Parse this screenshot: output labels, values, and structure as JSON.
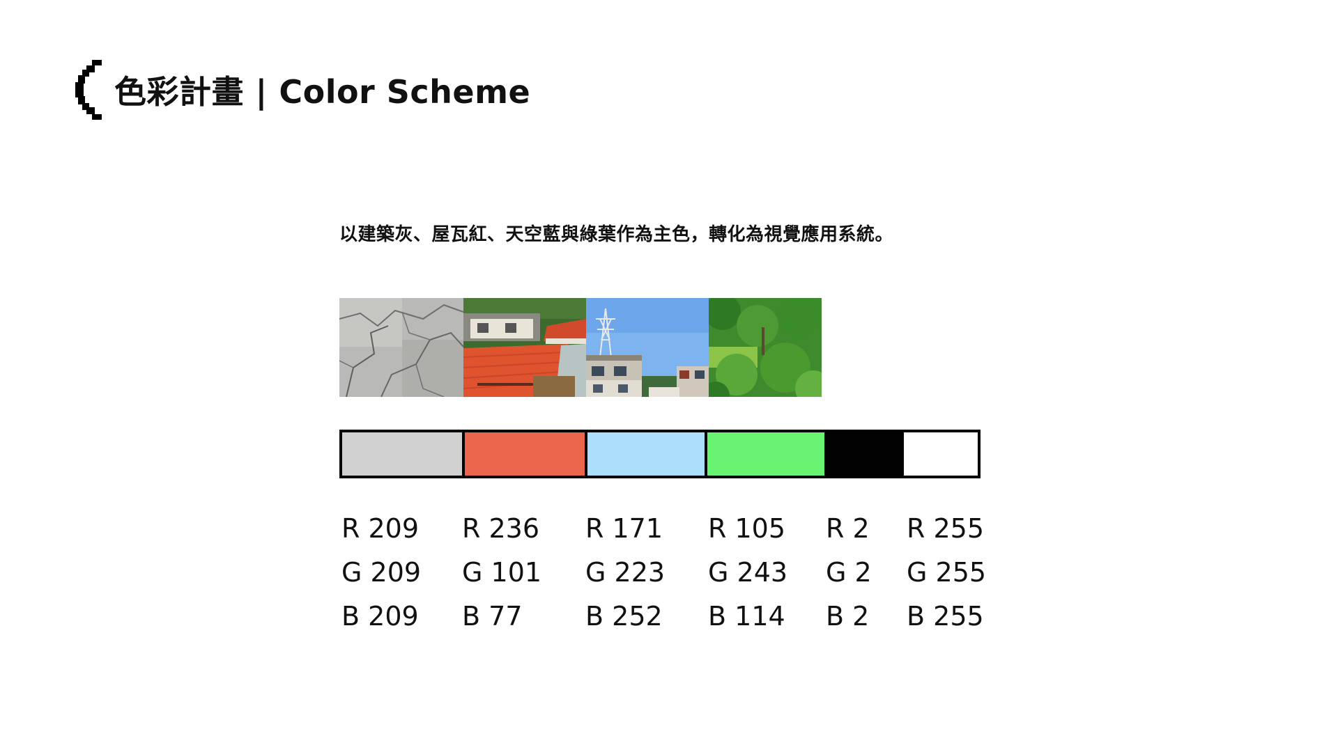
{
  "header": {
    "title": "色彩計畫 | Color Scheme"
  },
  "description": "以建築灰、屋瓦紅、天空藍與綠葉作為主色，轉化為視覺應用系統。",
  "colors": {
    "accent": "#020202",
    "background": "#ffffff"
  },
  "palette": [
    {
      "hex": "#d1d1d1",
      "r": "R 209",
      "g": "G 209",
      "b": "B 209"
    },
    {
      "hex": "#ec654d",
      "r": "R 236",
      "g": "G 101",
      "b": "B 77"
    },
    {
      "hex": "#abdffc",
      "r": "R 171",
      "g": "G 223",
      "b": "B 252"
    },
    {
      "hex": "#69f372",
      "r": "R 105",
      "g": "G 243",
      "b": "B 114"
    },
    {
      "hex": "#020202",
      "r": "R 2",
      "g": "G 2",
      "b": "B 2"
    },
    {
      "hex": "#ffffff",
      "r": "R 255",
      "g": "G 255",
      "b": "B 255"
    }
  ],
  "photos": [
    {
      "icon": "concrete-wall-photo"
    },
    {
      "icon": "red-roof-photo"
    },
    {
      "icon": "blue-sky-tower-photo"
    },
    {
      "icon": "green-trees-photo"
    }
  ]
}
